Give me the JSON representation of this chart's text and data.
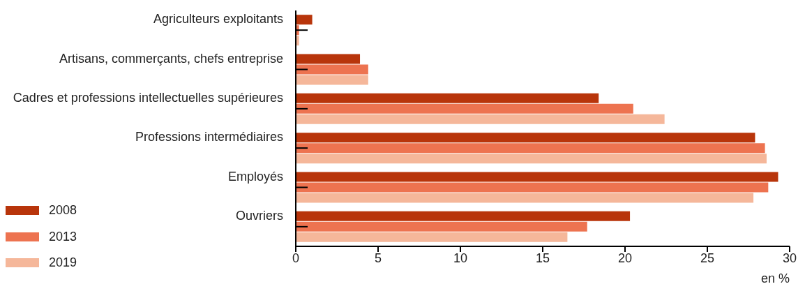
{
  "chart_data": {
    "type": "bar",
    "orientation": "horizontal",
    "xlabel": "en %",
    "categories": [
      "Agriculteurs exploitants",
      "Artisans, commerçants, chefs entreprise",
      "Cadres et professions intellectuelles supérieures",
      "Professions intermédiaires",
      "Employés",
      "Ouvriers"
    ],
    "series": [
      {
        "name": "2008",
        "color": "#b8350b",
        "values": [
          1.0,
          3.9,
          18.4,
          27.9,
          29.3,
          20.3
        ]
      },
      {
        "name": "2013",
        "color": "#ed7350",
        "values": [
          0.2,
          4.4,
          20.5,
          28.5,
          28.7,
          17.7
        ]
      },
      {
        "name": "2019",
        "color": "#f5b79a",
        "values": [
          0.2,
          4.4,
          22.4,
          28.6,
          27.8,
          16.5
        ]
      }
    ],
    "xlim": [
      0,
      30
    ],
    "xticks": [
      0,
      5,
      10,
      15,
      20,
      25,
      30
    ],
    "grid": false,
    "legend": "bottom left"
  }
}
